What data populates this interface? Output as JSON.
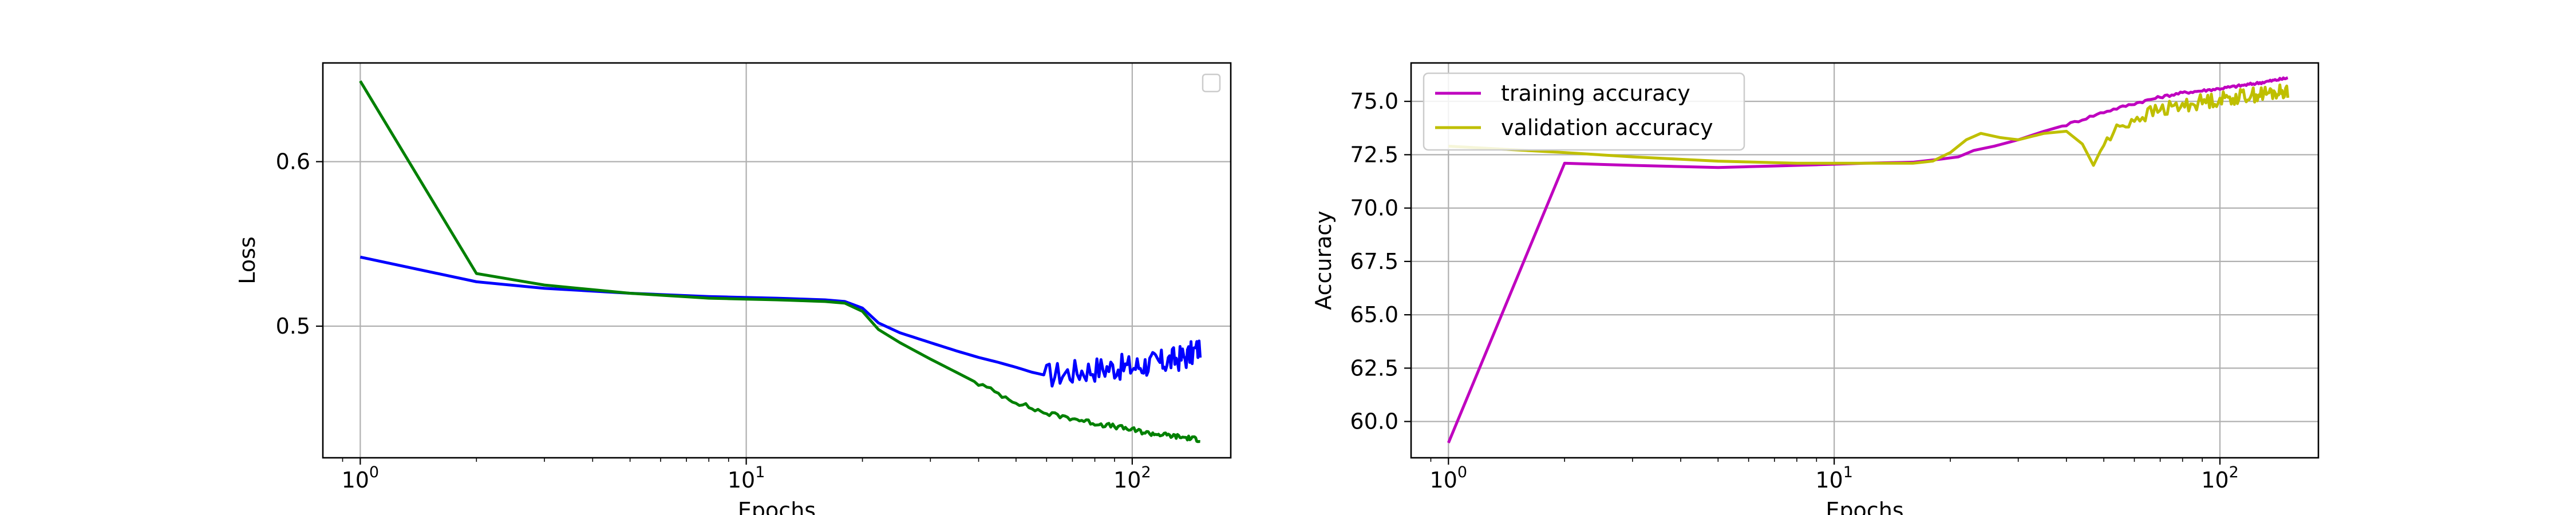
{
  "chart_data": [
    {
      "type": "line",
      "xlabel": "Epochs",
      "ylabel": "Loss",
      "xscale": "log",
      "xlim": [
        0.8,
        180
      ],
      "ylim": [
        0.42,
        0.66
      ],
      "x_ticks": [
        {
          "value": 1,
          "base": "10",
          "exp": "0"
        },
        {
          "value": 10,
          "base": "10",
          "exp": "1"
        },
        {
          "value": 100,
          "base": "10",
          "exp": "2"
        }
      ],
      "y_ticks": [
        {
          "value": 0.5,
          "label": "0.5"
        },
        {
          "value": 0.6,
          "label": "0.6"
        }
      ],
      "grid": true,
      "legend": "top-right (empty)",
      "series": [
        {
          "color": "#0000ff",
          "points": [
            [
              1,
              0.542
            ],
            [
              2,
              0.527
            ],
            [
              3,
              0.523
            ],
            [
              5,
              0.52
            ],
            [
              8,
              0.518
            ],
            [
              12,
              0.517
            ],
            [
              16,
              0.516
            ],
            [
              18,
              0.515
            ],
            [
              20,
              0.511
            ],
            [
              22,
              0.502
            ],
            [
              25,
              0.496
            ],
            [
              30,
              0.49
            ],
            [
              35,
              0.485
            ],
            [
              40,
              0.481
            ],
            [
              45,
              0.478
            ],
            [
              50,
              0.475
            ],
            [
              55,
              0.472
            ],
            [
              60,
              0.47
            ],
            [
              70,
              0.472
            ],
            [
              80,
              0.474
            ],
            [
              90,
              0.475
            ],
            [
              100,
              0.475
            ],
            [
              110,
              0.477
            ],
            [
              120,
              0.478
            ],
            [
              130,
              0.48
            ],
            [
              140,
              0.482
            ],
            [
              150,
              0.487
            ]
          ],
          "noise": 0.008,
          "noise_from": 60
        },
        {
          "color": "#008000",
          "points": [
            [
              1,
              0.649
            ],
            [
              2,
              0.532
            ],
            [
              3,
              0.525
            ],
            [
              5,
              0.52
            ],
            [
              8,
              0.517
            ],
            [
              12,
              0.516
            ],
            [
              16,
              0.515
            ],
            [
              18,
              0.514
            ],
            [
              20,
              0.509
            ],
            [
              22,
              0.498
            ],
            [
              25,
              0.49
            ],
            [
              30,
              0.48
            ],
            [
              35,
              0.472
            ],
            [
              40,
              0.465
            ],
            [
              45,
              0.459
            ],
            [
              50,
              0.454
            ],
            [
              55,
              0.45
            ],
            [
              60,
              0.447
            ],
            [
              70,
              0.444
            ],
            [
              80,
              0.441
            ],
            [
              90,
              0.439
            ],
            [
              100,
              0.437
            ],
            [
              110,
              0.435
            ],
            [
              120,
              0.434
            ],
            [
              130,
              0.433
            ],
            [
              140,
              0.432
            ],
            [
              150,
              0.431
            ]
          ],
          "noise": 0.0015,
          "noise_from": 40
        }
      ]
    },
    {
      "type": "line",
      "xlabel": "Epochs",
      "ylabel": "Accuracy",
      "xscale": "log",
      "xlim": [
        0.8,
        180
      ],
      "ylim": [
        58.3,
        76.8
      ],
      "x_ticks": [
        {
          "value": 1,
          "base": "10",
          "exp": "0"
        },
        {
          "value": 10,
          "base": "10",
          "exp": "1"
        },
        {
          "value": 100,
          "base": "10",
          "exp": "2"
        }
      ],
      "y_ticks": [
        {
          "value": 60.0,
          "label": "60.0"
        },
        {
          "value": 62.5,
          "label": "62.5"
        },
        {
          "value": 65.0,
          "label": "65.0"
        },
        {
          "value": 67.5,
          "label": "67.5"
        },
        {
          "value": 70.0,
          "label": "70.0"
        },
        {
          "value": 72.5,
          "label": "72.5"
        },
        {
          "value": 75.0,
          "label": "75.0"
        }
      ],
      "grid": true,
      "legend": "top-left",
      "series": [
        {
          "name": "training accuracy",
          "color": "#bf00bf",
          "points": [
            [
              1,
              59.0
            ],
            [
              2,
              72.1
            ],
            [
              3,
              72.0
            ],
            [
              5,
              71.9
            ],
            [
              8,
              72.0
            ],
            [
              12,
              72.1
            ],
            [
              16,
              72.15
            ],
            [
              19,
              72.3
            ],
            [
              21,
              72.4
            ],
            [
              23,
              72.7
            ],
            [
              26,
              72.9
            ],
            [
              30,
              73.2
            ],
            [
              35,
              73.6
            ],
            [
              40,
              73.9
            ],
            [
              50,
              74.5
            ],
            [
              60,
              74.9
            ],
            [
              70,
              75.2
            ],
            [
              80,
              75.4
            ],
            [
              90,
              75.5
            ],
            [
              100,
              75.6
            ],
            [
              120,
              75.8
            ],
            [
              140,
              76.0
            ],
            [
              150,
              76.1
            ]
          ],
          "noise": 0.06,
          "noise_from": 40
        },
        {
          "name": "validation accuracy",
          "color": "#bfbf00",
          "points": [
            [
              1,
              72.9
            ],
            [
              2,
              72.6
            ],
            [
              3,
              72.4
            ],
            [
              5,
              72.2
            ],
            [
              8,
              72.1
            ],
            [
              12,
              72.1
            ],
            [
              16,
              72.1
            ],
            [
              18,
              72.2
            ],
            [
              20,
              72.6
            ],
            [
              22,
              73.2
            ],
            [
              24,
              73.5
            ],
            [
              27,
              73.3
            ],
            [
              30,
              73.2
            ],
            [
              35,
              73.5
            ],
            [
              40,
              73.6
            ],
            [
              44,
              73.0
            ],
            [
              47,
              72.0
            ],
            [
              50,
              73.0
            ],
            [
              55,
              73.8
            ],
            [
              60,
              74.2
            ],
            [
              70,
              74.6
            ],
            [
              80,
              74.8
            ],
            [
              90,
              75.0
            ],
            [
              100,
              75.1
            ],
            [
              120,
              75.3
            ],
            [
              140,
              75.4
            ],
            [
              150,
              75.5
            ]
          ],
          "noise": 0.35,
          "noise_from": 50
        }
      ]
    }
  ]
}
